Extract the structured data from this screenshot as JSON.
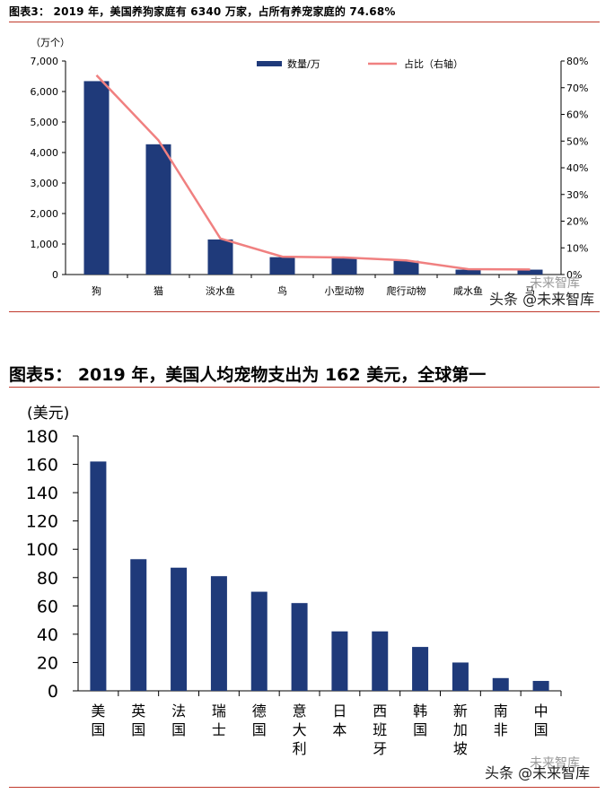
{
  "chart_data": [
    {
      "type": "bar",
      "title": "图表3： 2019 年，美国养狗家庭有 6340 万家，占所有养宠家庭的 74.68%",
      "yunit": "（万个）",
      "categories": [
        "狗",
        "猫",
        "淡水鱼",
        "鸟",
        "小型动物",
        "爬行动物",
        "咸水鱼",
        "马"
      ],
      "series": [
        {
          "name": "数量/万",
          "type": "bar",
          "axis": "left",
          "values": [
            6340,
            4270,
            1150,
            570,
            540,
            450,
            160,
            160
          ]
        },
        {
          "name": "占比（右轴）",
          "type": "line",
          "axis": "right",
          "values": [
            74.68,
            50.3,
            13.5,
            6.7,
            6.4,
            5.3,
            2.0,
            1.9
          ]
        }
      ],
      "ylim": [
        0,
        7000
      ],
      "yticks": [
        "0",
        "1,000",
        "2,000",
        "3,000",
        "4,000",
        "5,000",
        "6,000",
        "7,000"
      ],
      "y2lim": [
        0,
        80
      ],
      "y2ticks": [
        "0%",
        "10%",
        "20%",
        "30%",
        "40%",
        "50%",
        "60%",
        "70%",
        "80%"
      ],
      "legend": "top",
      "colors": {
        "bar": "#1f3a7a",
        "line": "#f08080"
      }
    },
    {
      "type": "bar",
      "title": "图表5： 2019 年，美国人均宠物支出为 162 美元，全球第一",
      "yunit": "(美元)",
      "categories": [
        "美国",
        "英国",
        "法国",
        "瑞士",
        "德国",
        "意大利",
        "日本",
        "西班牙",
        "韩国",
        "新加坡",
        "南非",
        "中国"
      ],
      "values": [
        162,
        93,
        87,
        81,
        70,
        62,
        42,
        42,
        31,
        20,
        9,
        7
      ],
      "ylim": [
        0,
        180
      ],
      "yticks": [
        "0",
        "20",
        "40",
        "60",
        "80",
        "100",
        "120",
        "140",
        "160",
        "180"
      ],
      "colors": {
        "bar": "#1f3a7a"
      }
    }
  ],
  "watermark": {
    "main": "头条 @未来智库",
    "faint": "未来智库"
  }
}
